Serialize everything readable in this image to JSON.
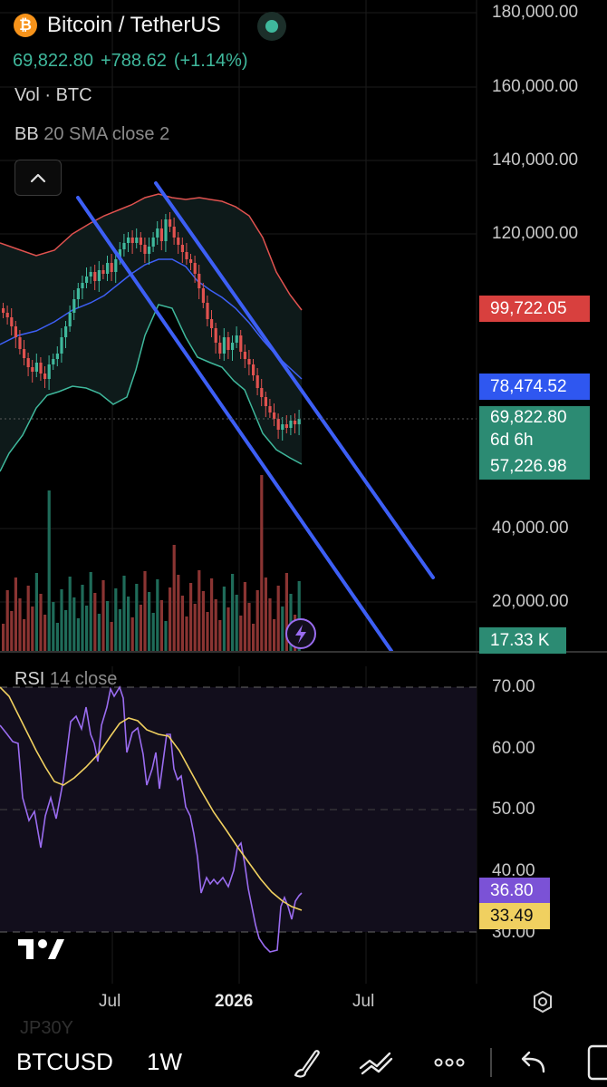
{
  "header": {
    "symbol_title": "Bitcoin / TetherUS",
    "coin_glyph": "₿",
    "last_price": "69,822.80",
    "change_abs": "+788.62",
    "change_pct": "(+1.14%)",
    "accent_up": "#3fb89c",
    "accent_down": "#e0524f"
  },
  "indicators": {
    "volume_label": "Vol · BTC",
    "bb_name": "BB",
    "bb_params": "20 SMA close 2",
    "rsi_name": "RSI",
    "rsi_params": "14 close"
  },
  "price_axis": {
    "ticks": [
      "180,000.00",
      "160,000.00",
      "140,000.00",
      "120,000.00",
      "40,000.00",
      "20,000.00"
    ]
  },
  "price_tags": {
    "bb_upper": "99,722.05",
    "bb_basis": "78,474.52",
    "last_price": "69,822.80",
    "countdown": "6d 6h",
    "bb_lower": "57,226.98",
    "volume": "17.33 K"
  },
  "rsi_axis": {
    "ticks": [
      "70.00",
      "60.00",
      "50.00",
      "40.00",
      "30.00"
    ],
    "rsi_value": "36.80",
    "rsi_ma_value": "33.49"
  },
  "time_axis": {
    "labels": [
      "Jul",
      "2026",
      "Jul"
    ]
  },
  "toolbar": {
    "symbol": "BTCUSD",
    "timeframe": "1W",
    "ghost_text": "JP30Y",
    "icons": [
      "brush-icon",
      "trend-line-icon",
      "more-icon",
      "undo-icon",
      "redo-icon",
      "settings-icon",
      "tradingview-logo-icon",
      "lightning-icon",
      "chevron-up-icon"
    ]
  }
}
